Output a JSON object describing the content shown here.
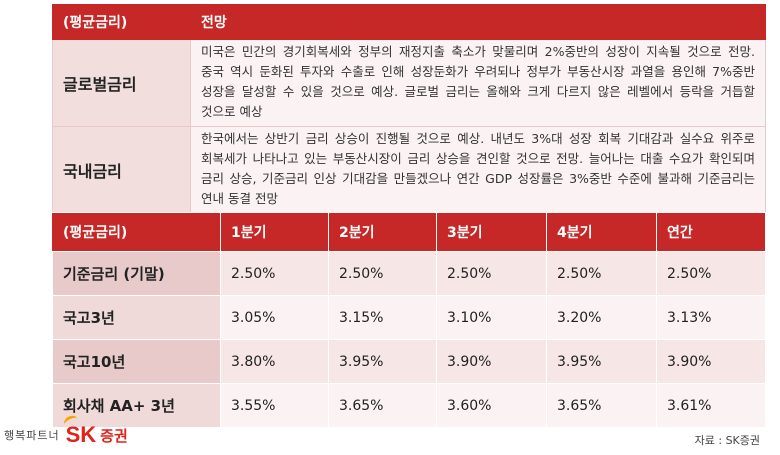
{
  "outlook": {
    "header_col1": "(평균금리)",
    "header_col2": "전망",
    "rows": [
      {
        "label": "글로벌금리",
        "text": "미국은 민간의 경기회복세와 정부의 재정지출 축소가 맞물리며 2%중반의 성장이 지속될 것으로 전망. 중국 역시 둔화된 투자와 수출로 인해 성장둔화가 우려되나 정부가 부동산시장 과열을 용인해 7%중반 성장을 달성할 수 있을 것으로 예상. 글로벌 금리는 올해와 크게 다르지 않은 레벨에서 등락을 거듭할 것으로 예상"
      },
      {
        "label": "국내금리",
        "text": "한국에서는 상반기 금리 상승이 진행될 것으로 예상. 내년도 3%대 성장 회복 기대감과 실수요 위주로 회복세가 나타나고 있는 부동산시장이 금리 상승을 견인할 것으로 전망. 늘어나는 대출 수요가 확인되며 금리 상승, 기준금리 인상 기대감을 만들겠으나 연간 GDP 성장률은 3%중반 수준에 불과해 기준금리는 연내 동결 전망"
      }
    ]
  },
  "rates": {
    "headers": [
      "(평균금리)",
      "1분기",
      "2분기",
      "3분기",
      "4분기",
      "연간"
    ],
    "rows": [
      {
        "label": "기준금리 (기말)",
        "values": [
          "2.50%",
          "2.50%",
          "2.50%",
          "2.50%",
          "2.50%"
        ]
      },
      {
        "label": "국고3년",
        "values": [
          "3.05%",
          "3.15%",
          "3.10%",
          "3.20%",
          "3.13%"
        ]
      },
      {
        "label": "국고10년",
        "values": [
          "3.80%",
          "3.95%",
          "3.90%",
          "3.95%",
          "3.90%"
        ]
      },
      {
        "label": "회사채 AA+ 3년",
        "values": [
          "3.55%",
          "3.65%",
          "3.60%",
          "3.65%",
          "3.61%"
        ]
      }
    ]
  },
  "footer": {
    "tagline": "행복파트너",
    "logo_sk": "SK",
    "logo_name": "증권",
    "source": "자료 : SK증권"
  },
  "colors": {
    "header_red": "#c62828",
    "label_pink": "#e8caca",
    "cell_pink": "#f6e6e6",
    "brand_red": "#e2231a",
    "brand_orange": "#f7a600"
  }
}
